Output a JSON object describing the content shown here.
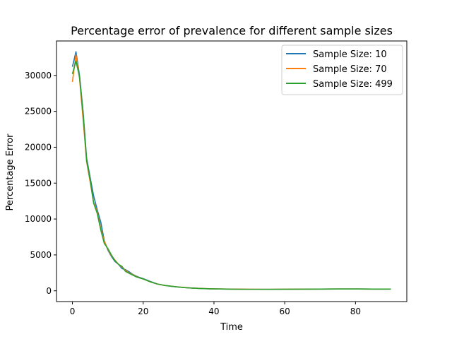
{
  "chart_data": {
    "type": "line",
    "title": "Percentage error of prevalence for different sample sizes",
    "xlabel": "Time",
    "ylabel": "Percentage Error",
    "xlim": [
      -4.5,
      94.5
    ],
    "ylim": [
      -1500,
      34800
    ],
    "xticks": [
      0,
      20,
      40,
      60,
      80
    ],
    "yticks": [
      0,
      5000,
      10000,
      15000,
      20000,
      25000,
      30000
    ],
    "grid": false,
    "legend_position": "top-right",
    "series": [
      {
        "name": "Sample Size: 10",
        "color": "#1f77b4",
        "x": [
          0,
          1,
          2,
          3,
          4,
          5,
          6,
          7,
          8,
          9,
          10,
          11,
          12,
          13,
          14,
          15,
          16,
          17,
          18,
          19,
          20,
          22,
          24,
          26,
          28,
          30,
          32,
          34,
          36,
          38,
          40,
          45,
          50,
          55,
          60,
          65,
          70,
          75,
          80,
          85,
          90
        ],
        "y": [
          31200,
          33300,
          30000,
          25000,
          18500,
          15800,
          13200,
          11300,
          9600,
          7000,
          5700,
          4800,
          4100,
          3700,
          3100,
          2950,
          2650,
          2300,
          2050,
          1850,
          1700,
          1300,
          950,
          750,
          620,
          520,
          430,
          380,
          330,
          290,
          260,
          230,
          210,
          200,
          220,
          230,
          240,
          250,
          250,
          240,
          240
        ]
      },
      {
        "name": "Sample Size: 70",
        "color": "#ff7f0e",
        "x": [
          0,
          1,
          2,
          3,
          4,
          5,
          6,
          7,
          8,
          9,
          10,
          11,
          12,
          13,
          14,
          15,
          16,
          17,
          18,
          19,
          20,
          22,
          24,
          26,
          28,
          30,
          32,
          34,
          36,
          38,
          40,
          45,
          50,
          55,
          60,
          65,
          70,
          75,
          80,
          85,
          90
        ],
        "y": [
          29100,
          32900,
          29600,
          24000,
          18000,
          15200,
          12300,
          11000,
          8700,
          6900,
          5800,
          4900,
          4300,
          3700,
          3300,
          2850,
          2500,
          2250,
          2000,
          1800,
          1650,
          1250,
          950,
          760,
          640,
          530,
          450,
          380,
          340,
          300,
          270,
          240,
          220,
          200,
          220,
          230,
          240,
          250,
          250,
          240,
          240
        ]
      },
      {
        "name": "Sample Size: 499",
        "color": "#2ca02c",
        "x": [
          0,
          1,
          2,
          3,
          4,
          5,
          6,
          7,
          8,
          9,
          10,
          11,
          12,
          13,
          14,
          15,
          16,
          17,
          18,
          19,
          20,
          22,
          24,
          26,
          28,
          30,
          32,
          34,
          36,
          38,
          40,
          45,
          50,
          55,
          60,
          65,
          70,
          75,
          80,
          85,
          90
        ],
        "y": [
          30200,
          32000,
          29800,
          24800,
          18200,
          15500,
          12200,
          10800,
          8500,
          6600,
          5900,
          5000,
          4200,
          3700,
          3400,
          2700,
          2450,
          2200,
          1950,
          1800,
          1650,
          1250,
          950,
          760,
          630,
          520,
          440,
          380,
          330,
          290,
          260,
          230,
          210,
          200,
          220,
          230,
          240,
          250,
          250,
          240,
          240
        ]
      }
    ]
  }
}
